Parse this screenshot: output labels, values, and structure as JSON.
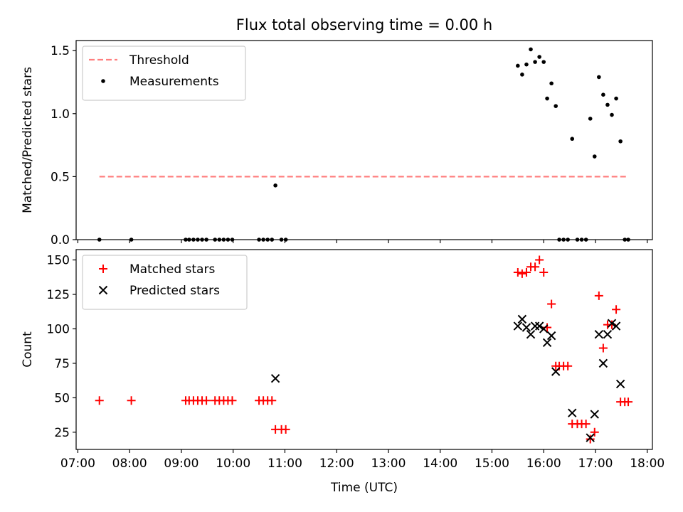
{
  "title": "Flux total observing time = 0.00 h",
  "chart_data": [
    {
      "type": "scatter",
      "ylabel": "Matched/Predicted stars",
      "xlabel": "",
      "xlim": [
        "06:58",
        "18:06"
      ],
      "ylim": [
        0,
        1.58
      ],
      "yticks": [
        0.0,
        0.5,
        1.0,
        1.5
      ],
      "ytick_labels": [
        "0.0",
        "0.5",
        "1.0",
        "1.5"
      ],
      "legend_position": "upper left",
      "threshold": {
        "name": "Threshold",
        "color": "#ff7f7f",
        "y": 0.5,
        "x_range": [
          "07:25",
          "17:37"
        ]
      },
      "series": [
        {
          "name": "Measurements",
          "marker": "dot",
          "color": "#000000",
          "points": [
            [
              "07:25",
              0
            ],
            [
              "08:02",
              0
            ],
            [
              "09:05",
              0
            ],
            [
              "09:09",
              0
            ],
            [
              "09:14",
              0
            ],
            [
              "09:19",
              0
            ],
            [
              "09:24",
              0
            ],
            [
              "09:29",
              0
            ],
            [
              "09:39",
              0
            ],
            [
              "09:44",
              0
            ],
            [
              "09:49",
              0
            ],
            [
              "09:54",
              0
            ],
            [
              "09:59",
              0
            ],
            [
              "10:30",
              0
            ],
            [
              "10:35",
              0
            ],
            [
              "10:40",
              0
            ],
            [
              "10:45",
              0
            ],
            [
              "10:49",
              0.43
            ],
            [
              "10:56",
              0
            ],
            [
              "11:01",
              0
            ],
            [
              "15:30",
              1.38
            ],
            [
              "15:35",
              1.31
            ],
            [
              "15:40",
              1.39
            ],
            [
              "15:45",
              1.51
            ],
            [
              "15:50",
              1.41
            ],
            [
              "15:55",
              1.45
            ],
            [
              "16:00",
              1.41
            ],
            [
              "16:04",
              1.12
            ],
            [
              "16:09",
              1.24
            ],
            [
              "16:14",
              1.06
            ],
            [
              "16:18",
              0
            ],
            [
              "16:23",
              0
            ],
            [
              "16:28",
              0
            ],
            [
              "16:33",
              0.8
            ],
            [
              "16:39",
              0
            ],
            [
              "16:44",
              0
            ],
            [
              "16:49",
              0
            ],
            [
              "16:54",
              0.96
            ],
            [
              "16:59",
              0.66
            ],
            [
              "17:04",
              1.29
            ],
            [
              "17:09",
              1.15
            ],
            [
              "17:14",
              1.07
            ],
            [
              "17:19",
              0.99
            ],
            [
              "17:24",
              1.12
            ],
            [
              "17:29",
              0.78
            ],
            [
              "17:34",
              0
            ],
            [
              "17:38",
              0
            ]
          ]
        }
      ]
    },
    {
      "type": "scatter",
      "ylabel": "Count",
      "xlabel": "Time (UTC)",
      "xlim": [
        "06:58",
        "18:06"
      ],
      "ylim": [
        12.5,
        157.5
      ],
      "yticks": [
        25,
        50,
        75,
        100,
        125,
        150
      ],
      "ytick_labels": [
        "25",
        "50",
        "75",
        "100",
        "125",
        "150"
      ],
      "xticks": [
        "07:00",
        "08:00",
        "09:00",
        "10:00",
        "11:00",
        "12:00",
        "13:00",
        "14:00",
        "15:00",
        "16:00",
        "17:00",
        "18:00"
      ],
      "xtick_labels": [
        "07:00",
        "08:00",
        "09:00",
        "10:00",
        "11:00",
        "12:00",
        "13:00",
        "14:00",
        "15:00",
        "16:00",
        "17:00",
        "18:00"
      ],
      "legend_position": "upper left",
      "series": [
        {
          "name": "Matched stars",
          "marker": "plus",
          "color": "#ff0000",
          "points": [
            [
              "07:25",
              48
            ],
            [
              "08:02",
              48
            ],
            [
              "09:05",
              48
            ],
            [
              "09:09",
              48
            ],
            [
              "09:14",
              48
            ],
            [
              "09:19",
              48
            ],
            [
              "09:24",
              48
            ],
            [
              "09:29",
              48
            ],
            [
              "09:39",
              48
            ],
            [
              "09:44",
              48
            ],
            [
              "09:49",
              48
            ],
            [
              "09:54",
              48
            ],
            [
              "09:59",
              48
            ],
            [
              "10:30",
              48
            ],
            [
              "10:35",
              48
            ],
            [
              "10:40",
              48
            ],
            [
              "10:45",
              48
            ],
            [
              "10:49",
              27
            ],
            [
              "10:56",
              27
            ],
            [
              "11:01",
              27
            ],
            [
              "15:30",
              141
            ],
            [
              "15:35",
              140
            ],
            [
              "15:40",
              141
            ],
            [
              "15:45",
              145
            ],
            [
              "15:50",
              145
            ],
            [
              "15:55",
              150
            ],
            [
              "16:00",
              141
            ],
            [
              "16:04",
              101
            ],
            [
              "16:09",
              118
            ],
            [
              "16:14",
              73
            ],
            [
              "16:18",
              73
            ],
            [
              "16:23",
              73
            ],
            [
              "16:28",
              73
            ],
            [
              "16:33",
              31
            ],
            [
              "16:39",
              31
            ],
            [
              "16:44",
              31
            ],
            [
              "16:49",
              31
            ],
            [
              "16:54",
              20
            ],
            [
              "16:59",
              25
            ],
            [
              "17:04",
              124
            ],
            [
              "17:09",
              86
            ],
            [
              "17:14",
              103
            ],
            [
              "17:19",
              103
            ],
            [
              "17:24",
              114
            ],
            [
              "17:29",
              47
            ],
            [
              "17:34",
              47
            ],
            [
              "17:38",
              47
            ]
          ]
        },
        {
          "name": "Predicted stars",
          "marker": "x",
          "color": "#000000",
          "points": [
            [
              "10:49",
              64
            ],
            [
              "15:30",
              102
            ],
            [
              "15:35",
              107
            ],
            [
              "15:40",
              101
            ],
            [
              "15:45",
              96
            ],
            [
              "15:50",
              102
            ],
            [
              "15:55",
              102
            ],
            [
              "16:00",
              100
            ],
            [
              "16:04",
              90
            ],
            [
              "16:09",
              95
            ],
            [
              "16:14",
              69
            ],
            [
              "16:33",
              39
            ],
            [
              "16:54",
              21
            ],
            [
              "16:59",
              38
            ],
            [
              "17:04",
              96
            ],
            [
              "17:09",
              75
            ],
            [
              "17:14",
              96
            ],
            [
              "17:19",
              104
            ],
            [
              "17:24",
              102
            ],
            [
              "17:29",
              60
            ]
          ]
        }
      ]
    }
  ]
}
